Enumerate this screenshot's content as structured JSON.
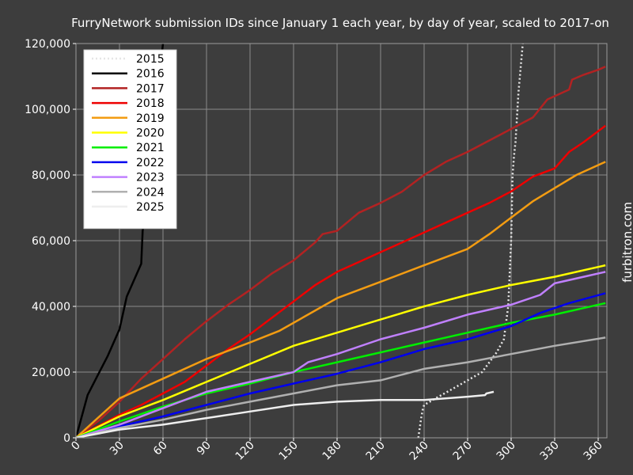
{
  "chart_data": {
    "type": "line",
    "title": "FurryNetwork submission IDs since January 1 each year, by day of year, scaled to 2017-on",
    "watermark": "furbitron.com",
    "xlim": [
      0,
      366
    ],
    "ylim": [
      0,
      120000
    ],
    "xticks": [
      0,
      30,
      60,
      90,
      120,
      150,
      180,
      210,
      240,
      270,
      300,
      330,
      360
    ],
    "yticks": [
      0,
      20000,
      40000,
      60000,
      80000,
      100000,
      120000
    ],
    "ytick_labels": [
      "0",
      "20,000",
      "40,000",
      "60,000",
      "80,000",
      "100,000",
      "120,000"
    ],
    "grid": true,
    "legend": "top-left",
    "series": [
      {
        "name": "2015",
        "color": "#e6e6e6",
        "dash": "dotted",
        "x": [
          236,
          237,
          238,
          239,
          240,
          250,
          260,
          270,
          280,
          290,
          295,
          298,
          300,
          301,
          302,
          303,
          305,
          308
        ],
        "y": [
          0,
          3000,
          6000,
          8500,
          10000,
          12500,
          15000,
          17500,
          20000,
          26000,
          30000,
          40000,
          60000,
          80000,
          86000,
          90000,
          105000,
          120000
        ]
      },
      {
        "name": "2016",
        "color": "#000000",
        "x": [
          0,
          8,
          15,
          22,
          30,
          35,
          45,
          46,
          50,
          55,
          60
        ],
        "y": [
          0,
          13000,
          19000,
          25000,
          33000,
          43000,
          53000,
          63000,
          75000,
          100000,
          120000
        ]
      },
      {
        "name": "2017",
        "color": "#b22222",
        "x": [
          0,
          15,
          30,
          45,
          60,
          75,
          90,
          105,
          120,
          135,
          150,
          165,
          170,
          180,
          195,
          210,
          225,
          240,
          255,
          270,
          285,
          300,
          315,
          325,
          340,
          342,
          350,
          360,
          365
        ],
        "y": [
          0,
          5000,
          11000,
          18000,
          24000,
          30000,
          35500,
          40500,
          45000,
          50000,
          54000,
          59500,
          62000,
          63000,
          68500,
          71500,
          75000,
          80000,
          84000,
          87000,
          90500,
          94000,
          97500,
          103000,
          106000,
          109000,
          110500,
          112000,
          113000
        ]
      },
      {
        "name": "2018",
        "color": "#ee0000",
        "x": [
          0,
          15,
          30,
          45,
          60,
          75,
          90,
          105,
          120,
          135,
          150,
          165,
          180,
          195,
          210,
          225,
          240,
          255,
          270,
          285,
          300,
          315,
          330,
          340,
          350,
          365
        ],
        "y": [
          0,
          3500,
          7000,
          10000,
          13500,
          17000,
          22000,
          27000,
          31500,
          36500,
          41500,
          46500,
          50500,
          53500,
          56500,
          59500,
          62500,
          65500,
          68500,
          71500,
          75000,
          79500,
          82000,
          87000,
          90000,
          95000
        ]
      },
      {
        "name": "2019",
        "color": "#f39c12",
        "x": [
          0,
          15,
          30,
          60,
          90,
          120,
          140,
          160,
          180,
          210,
          240,
          270,
          285,
          300,
          315,
          330,
          345,
          365
        ],
        "y": [
          0,
          6000,
          12000,
          18000,
          24000,
          29000,
          32500,
          37500,
          42500,
          47500,
          52500,
          57500,
          62000,
          67000,
          72000,
          76000,
          80000,
          84000
        ]
      },
      {
        "name": "2020",
        "color": "#ffff00",
        "x": [
          0,
          30,
          60,
          90,
          120,
          150,
          180,
          210,
          240,
          270,
          300,
          330,
          365
        ],
        "y": [
          0,
          6500,
          11500,
          17000,
          22500,
          28000,
          32000,
          36000,
          40000,
          43500,
          46500,
          49000,
          52500
        ]
      },
      {
        "name": "2021",
        "color": "#00ee00",
        "x": [
          0,
          30,
          60,
          90,
          120,
          150,
          180,
          210,
          240,
          270,
          300,
          330,
          365
        ],
        "y": [
          0,
          5000,
          9500,
          13500,
          16500,
          20000,
          23000,
          26000,
          29000,
          32000,
          35000,
          37500,
          41000
        ]
      },
      {
        "name": "2022",
        "color": "#0000ee",
        "x": [
          0,
          30,
          60,
          90,
          120,
          150,
          180,
          210,
          240,
          270,
          300,
          320,
          340,
          365
        ],
        "y": [
          0,
          3500,
          6500,
          10000,
          13500,
          16500,
          19500,
          23000,
          27000,
          30000,
          34000,
          38000,
          41000,
          44000
        ]
      },
      {
        "name": "2023",
        "color": "#c080ff",
        "x": [
          0,
          30,
          60,
          90,
          120,
          150,
          160,
          180,
          210,
          240,
          270,
          300,
          320,
          330,
          350,
          365
        ],
        "y": [
          0,
          4000,
          9000,
          14000,
          17000,
          20000,
          23000,
          25500,
          30000,
          33500,
          37500,
          40500,
          43500,
          47000,
          49000,
          50500
        ]
      },
      {
        "name": "2024",
        "color": "#b0b0b0",
        "x": [
          0,
          30,
          60,
          90,
          120,
          150,
          180,
          210,
          240,
          270,
          300,
          330,
          365
        ],
        "y": [
          0,
          3000,
          5500,
          8500,
          11000,
          13500,
          16000,
          17500,
          21000,
          23000,
          25500,
          28000,
          30500
        ]
      },
      {
        "name": "2025",
        "color": "#eeeeee",
        "x": [
          0,
          30,
          60,
          90,
          120,
          150,
          180,
          210,
          240,
          270,
          282,
          283,
          288
        ],
        "y": [
          0,
          2500,
          4000,
          6000,
          8000,
          10000,
          11000,
          11500,
          11500,
          12500,
          13000,
          13500,
          14000
        ]
      }
    ]
  }
}
